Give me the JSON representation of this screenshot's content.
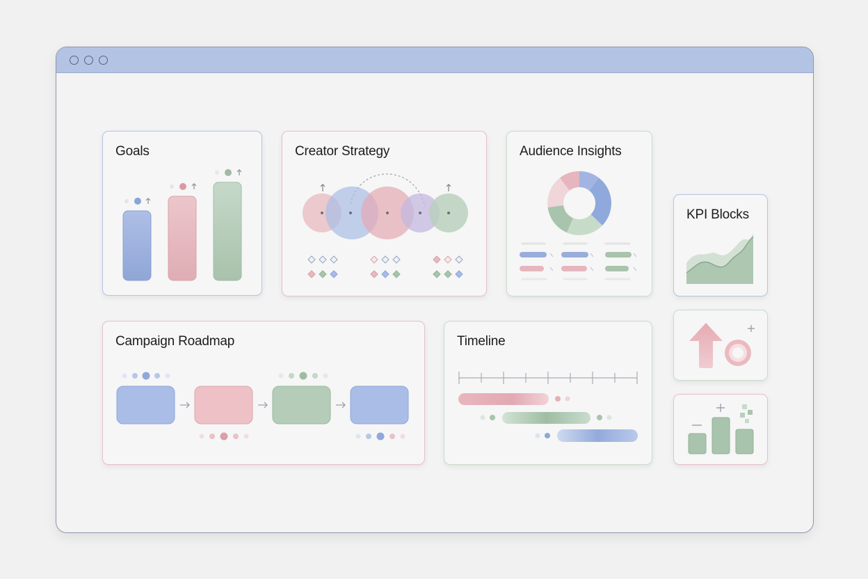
{
  "window": {
    "controls": [
      "close",
      "minimize",
      "maximize"
    ],
    "colors": {
      "titlebar": "#b3c3e4",
      "blue": "#8fa8d9",
      "pink": "#e4aeb6",
      "green": "#a8c4aa"
    }
  },
  "cards": {
    "goals": {
      "title": "Goals",
      "icon": "bar-chart-icon"
    },
    "creator_strategy": {
      "title": "Creator Strategy",
      "icon": "venn-circles-icon"
    },
    "audience_insights": {
      "title": "Audience Insights",
      "icon": "donut-chart-icon"
    },
    "kpi_blocks": {
      "title": "KPI Blocks",
      "icon": "area-chart-icon"
    },
    "campaign_roadmap": {
      "title": "Campaign Roadmap",
      "icon": "flow-steps-icon"
    },
    "timeline": {
      "title": "Timeline",
      "icon": "gantt-icon"
    },
    "growth_tile": {
      "icon": "arrow-up-target-icon"
    },
    "metrics_tile": {
      "icon": "mini-bars-icon"
    }
  }
}
